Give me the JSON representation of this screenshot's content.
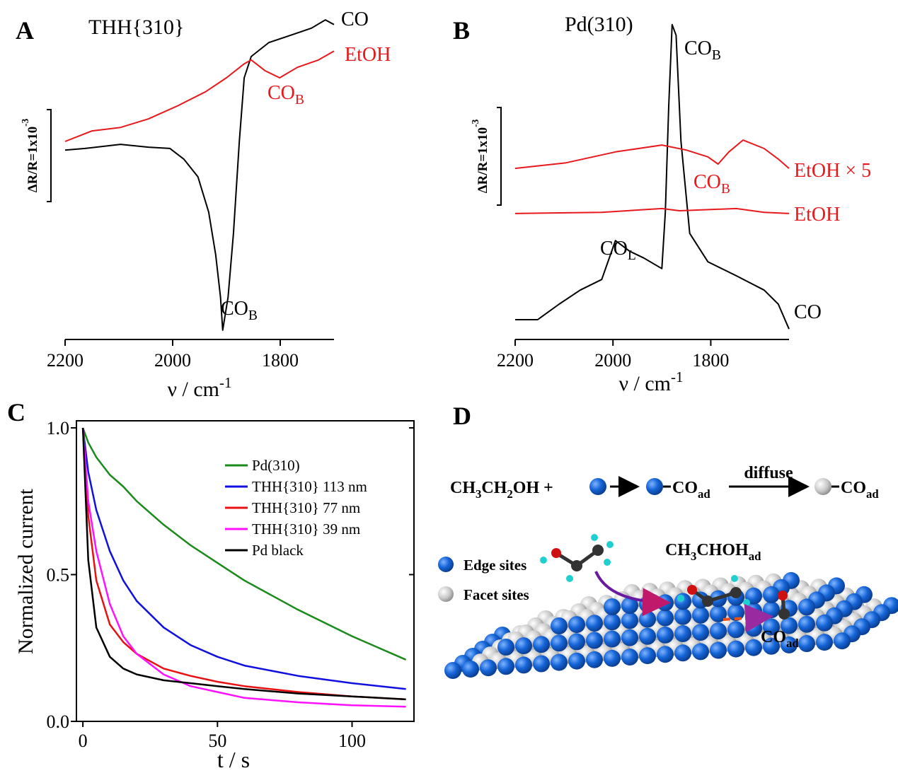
{
  "panel_labels": [
    "A",
    "B",
    "C",
    "D"
  ],
  "chart_data": [
    {
      "type": "line",
      "title": "THH{310}",
      "xlim": [
        2200,
        1700
      ],
      "xticks": [
        2200,
        2000,
        1800
      ],
      "ylim": [
        0,
        100
      ],
      "x_label": {
        "text": "ν / cm",
        "sup": "-1"
      },
      "scale_bar": {
        "text": "ΔR/R=1x10",
        "sup": "-3"
      },
      "series": [
        {
          "name": "CO",
          "color": "#000000",
          "x": [
            2200,
            2163,
            2097,
            2045,
            2005,
            1979,
            1953,
            1933,
            1920,
            1911,
            1907,
            1897,
            1887,
            1876,
            1867,
            1854,
            1821,
            1782,
            1742,
            1716,
            1700
          ],
          "values": [
            57.3,
            57.8,
            59.1,
            58.2,
            57.8,
            54.4,
            48.9,
            37.8,
            24.4,
            11.1,
            0.7,
            11.1,
            31.1,
            60,
            80,
            86.7,
            91.1,
            93.3,
            95.6,
            98.2,
            96.7
          ]
        },
        {
          "name": "EtOH",
          "color": "#e8191c",
          "x": [
            2200,
            2150,
            2097,
            2045,
            1992,
            1939,
            1900,
            1867,
            1854,
            1828,
            1801,
            1768,
            1729,
            1700
          ],
          "values": [
            60,
            63.3,
            64.4,
            67.1,
            71.1,
            75.6,
            80,
            84.4,
            85.6,
            82.2,
            80,
            83.3,
            85.6,
            88.4
          ]
        }
      ],
      "annotations": [
        {
          "text": "CO",
          "sub": "B",
          "color": "#000000"
        },
        {
          "text": "CO",
          "sub": "B",
          "color": "#e8191c"
        }
      ]
    },
    {
      "type": "line",
      "title": "Pd(310)",
      "xlim": [
        2200,
        1640
      ],
      "xticks": [
        2200,
        2000,
        1800
      ],
      "ylim": [
        0,
        100
      ],
      "x_label": {
        "text": "ν / cm",
        "sup": "-1"
      },
      "scale_bar": {
        "text": "ΔR/R=1x10",
        "sup": "-3"
      },
      "series": [
        {
          "name": "CO",
          "color": "#000000",
          "x": [
            2200,
            2154,
            2110,
            2067,
            2023,
            1995,
            1966,
            1937,
            1900,
            1893,
            1886,
            1879,
            1871,
            1861,
            1843,
            1806,
            1748,
            1691,
            1662,
            1640
          ],
          "values": [
            4.1,
            4.1,
            9.1,
            13.6,
            17,
            29.5,
            26.1,
            23.9,
            20.5,
            38.6,
            72.7,
            98.9,
            95.5,
            61.4,
            31.8,
            22.7,
            18.2,
            13.6,
            9.1,
            1.1
          ]
        },
        {
          "name": "EtOH",
          "color": "#e8191c",
          "x": [
            2200,
            2023,
            1900,
            1864,
            1748,
            1691,
            1640
          ],
          "values": [
            38.2,
            38.6,
            39.8,
            39.1,
            39.8,
            38.6,
            38.2
          ]
        },
        {
          "name": "EtOH × 5",
          "color": "#e8191c",
          "x": [
            2200,
            2096,
            1995,
            1900,
            1850,
            1806,
            1785,
            1763,
            1734,
            1691,
            1662,
            1640
          ],
          "values": [
            52.7,
            54.5,
            58,
            60.2,
            58.6,
            56.4,
            54.1,
            58,
            61.8,
            59.1,
            55.7,
            52.7
          ]
        }
      ],
      "annotations": [
        {
          "text": "CO",
          "sub": "B",
          "color": "#000000"
        },
        {
          "text": "CO",
          "sub": "L",
          "color": "#000000"
        },
        {
          "text": "CO",
          "sub": "B",
          "color": "#e8191c"
        }
      ]
    },
    {
      "type": "line",
      "x_label": "t / s",
      "y_label": "Normalized current",
      "xlim": [
        -2.4,
        123
      ],
      "ylim": [
        0,
        1.024
      ],
      "xticks": [
        0,
        50,
        100
      ],
      "yticks": [
        {
          "value": 0,
          "label": "0.0"
        },
        0.5,
        {
          "value": 1,
          "label": "1.0"
        }
      ],
      "legend": "upper right",
      "x": [
        0,
        2,
        5,
        10,
        15,
        20,
        30,
        40,
        50,
        60,
        80,
        100,
        120
      ],
      "series": [
        {
          "name": "Pd(310)",
          "color": "#1a8a1a",
          "values": [
            1,
            0.95,
            0.9,
            0.84,
            0.8,
            0.75,
            0.67,
            0.6,
            0.54,
            0.48,
            0.38,
            0.29,
            0.21
          ]
        },
        {
          "name": "THH{310} 113 nm",
          "color": "#1010e0",
          "values": [
            1,
            0.85,
            0.72,
            0.58,
            0.48,
            0.41,
            0.32,
            0.26,
            0.22,
            0.19,
            0.155,
            0.13,
            0.11
          ]
        },
        {
          "name": "THH{310} 77 nm",
          "color": "#e81010",
          "values": [
            1,
            0.7,
            0.48,
            0.33,
            0.27,
            0.23,
            0.18,
            0.155,
            0.135,
            0.12,
            0.1,
            0.085,
            0.075
          ]
        },
        {
          "name": "THH{310} 39 nm",
          "color": "#ff10ff",
          "values": [
            1,
            0.75,
            0.58,
            0.4,
            0.29,
            0.23,
            0.16,
            0.12,
            0.1,
            0.08,
            0.065,
            0.055,
            0.05
          ]
        },
        {
          "name": "Pd black",
          "color": "#000000",
          "values": [
            1,
            0.55,
            0.32,
            0.22,
            0.18,
            0.16,
            0.14,
            0.13,
            0.12,
            0.11,
            0.095,
            0.085,
            0.075
          ]
        }
      ]
    }
  ],
  "diagram": {
    "reactant": [
      "CH",
      "3",
      "CH",
      "2",
      "OH +"
    ],
    "product1": [
      "CO",
      "ad"
    ],
    "arrow_label": "diffuse",
    "product2": [
      "CO",
      "ad"
    ],
    "intermediate": [
      "CH",
      "3",
      "CHOH",
      "ad"
    ],
    "surface_product": [
      "CO",
      "ad"
    ],
    "legend": [
      "Edge sites",
      "Facet sites"
    ]
  }
}
